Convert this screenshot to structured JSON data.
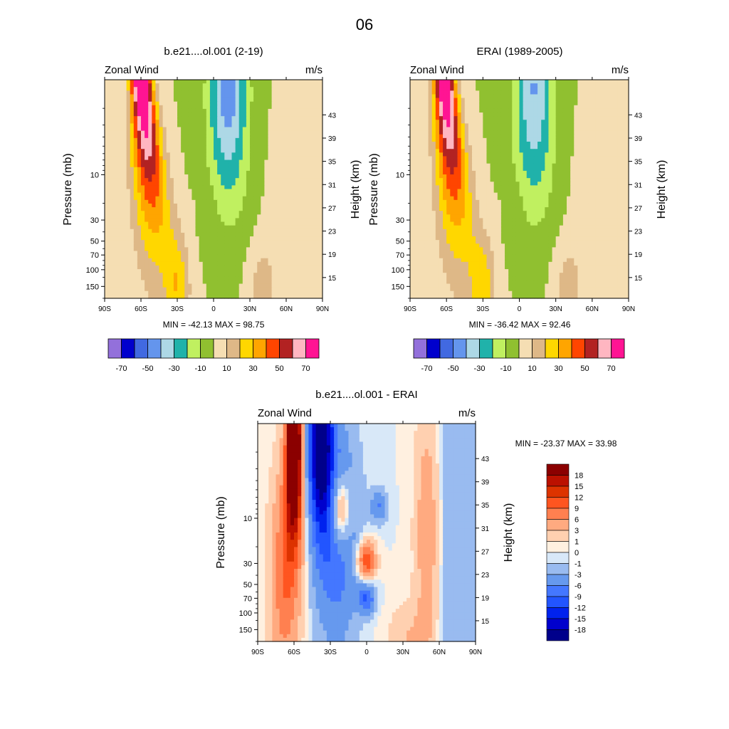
{
  "page_title": "06",
  "chart_data": [
    {
      "type": "heatmap",
      "title": "b.e21....ol.001 (2-19)",
      "left_label": "Zonal Wind",
      "right_label": "m/s",
      "ylabel_left": "Pressure (mb)",
      "ylabel_right": "Height (km)",
      "x_ticks": [
        "90S",
        "60S",
        "30S",
        "0",
        "30N",
        "60N",
        "90N"
      ],
      "x_values": [
        -90,
        -60,
        -30,
        0,
        30,
        60,
        90
      ],
      "p_ticks": [
        "10",
        "30",
        "50",
        "70",
        "100",
        "150"
      ],
      "p_values": [
        10,
        30,
        50,
        70,
        100,
        150
      ],
      "p_range": [
        1,
        200
      ],
      "h_ticks": [
        "43",
        "39",
        "35",
        "31",
        "27",
        "23",
        "19",
        "15"
      ],
      "stats": "MIN = -42.13  MAX =  98.75",
      "levels_labels": [
        "-70",
        "-50",
        "-30",
        "-10",
        "10",
        "30",
        "50",
        "70"
      ],
      "jet_lat": -60,
      "jet_max": 98.75,
      "field_min": -42.13
    },
    {
      "type": "heatmap",
      "title": "ERAI (1989-2005)",
      "left_label": "Zonal Wind",
      "right_label": "m/s",
      "ylabel_left": "Pressure (mb)",
      "ylabel_right": "Height (km)",
      "x_ticks": [
        "90S",
        "60S",
        "30S",
        "0",
        "30N",
        "60N",
        "90N"
      ],
      "x_values": [
        -90,
        -60,
        -30,
        0,
        30,
        60,
        90
      ],
      "p_ticks": [
        "10",
        "30",
        "50",
        "70",
        "100",
        "150"
      ],
      "p_values": [
        10,
        30,
        50,
        70,
        100,
        150
      ],
      "p_range": [
        1,
        200
      ],
      "h_ticks": [
        "43",
        "39",
        "35",
        "31",
        "27",
        "23",
        "19",
        "15"
      ],
      "stats": "MIN = -36.42  MAX =  92.46",
      "levels_labels": [
        "-70",
        "-50",
        "-30",
        "-10",
        "10",
        "30",
        "50",
        "70"
      ],
      "jet_lat": -62,
      "jet_max": 92.46,
      "field_min": -36.42
    },
    {
      "type": "heatmap",
      "title": "b.e21....ol.001 - ERAI",
      "left_label": "Zonal Wind",
      "right_label": "m/s",
      "ylabel_left": "Pressure (mb)",
      "ylabel_right": "Height (km)",
      "x_ticks": [
        "90S",
        "60S",
        "30S",
        "0",
        "30N",
        "60N",
        "90N"
      ],
      "x_values": [
        -90,
        -60,
        -30,
        0,
        30,
        60,
        90
      ],
      "p_ticks": [
        "10",
        "30",
        "50",
        "70",
        "100",
        "150"
      ],
      "p_values": [
        10,
        30,
        50,
        70,
        100,
        150
      ],
      "p_range": [
        1,
        200
      ],
      "h_ticks": [
        "43",
        "39",
        "35",
        "31",
        "27",
        "23",
        "19",
        "15"
      ],
      "stats": "MIN = -23.37  MAX =  33.98",
      "levels": [
        -18,
        -15,
        -12,
        -9,
        -6,
        -3,
        -1,
        0,
        1,
        3,
        6,
        9,
        12,
        15,
        18
      ],
      "levels_labels": [
        "18",
        "15",
        "12",
        "9",
        "6",
        "3",
        "1",
        "0",
        "-1",
        "-3",
        "-6",
        "-9",
        "-12",
        "-15",
        "-18"
      ],
      "field_min": -23.37,
      "field_max": 33.98
    }
  ],
  "colors": {
    "wind_palette": [
      "#9370db",
      "#0000cd",
      "#4169e1",
      "#6495ed",
      "#add8e6",
      "#20b2aa",
      "#c0f060",
      "#90c030",
      "#f5deb3",
      "#deb887",
      "#ffd700",
      "#ffa500",
      "#ff4500",
      "#b22222",
      "#ffb6c1",
      "#ff1493"
    ],
    "diff_palette": [
      "#00008b",
      "#0000cd",
      "#0022ee",
      "#2255ff",
      "#4477ff",
      "#6699ee",
      "#99bbf0",
      "#d8e8f8",
      "#fff0e0",
      "#ffd0b0",
      "#ffaa80",
      "#ff8050",
      "#ff5520",
      "#dd3300",
      "#bb1100",
      "#8b0000"
    ]
  }
}
